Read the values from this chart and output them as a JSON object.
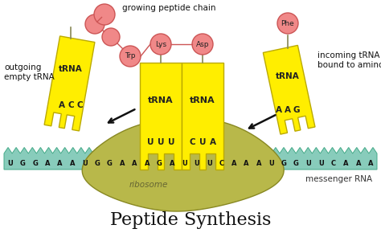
{
  "bg_color": "#ffffff",
  "trna_color": "#ffee00",
  "trna_border": "#bbaa00",
  "mrna_color": "#88ccbb",
  "mrna_border": "#44aa88",
  "ribosome_color": "#b8b84a",
  "ribosome_border": "#888822",
  "amino_color": "#f08888",
  "amino_border": "#cc5555",
  "title": "Peptide Synthesis",
  "title_fontsize": 16,
  "small_fontsize": 7.5,
  "mrna_sequence": "UGGAAAUGGAAAGAUUUCAAAUGGUUCAAA",
  "left_anticodon": [
    "A",
    "C",
    "C"
  ],
  "right_anticodon": [
    "A",
    "A",
    "G"
  ],
  "center_left_codon": [
    "U",
    "U",
    "U"
  ],
  "center_right_codon": [
    "C",
    "U",
    "A"
  ]
}
